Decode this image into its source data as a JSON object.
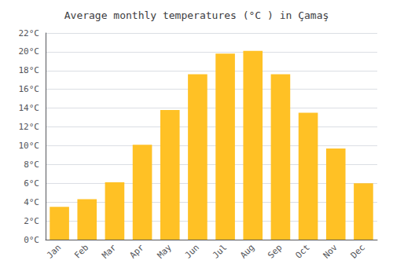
{
  "chart_data": {
    "type": "bar",
    "title": "Average monthly temperatures (°C ) in Çamaş",
    "categories": [
      "Jan",
      "Feb",
      "Mar",
      "Apr",
      "May",
      "Jun",
      "Jul",
      "Aug",
      "Sep",
      "Oct",
      "Nov",
      "Dec"
    ],
    "values": [
      3.5,
      4.3,
      6.1,
      10.1,
      13.8,
      17.6,
      19.8,
      20.1,
      17.6,
      13.5,
      9.7,
      6.0
    ],
    "color": "#FFC125",
    "ylim": [
      0,
      22
    ],
    "yticks": [
      {
        "value": 0,
        "label": "0°C"
      },
      {
        "value": 2,
        "label": "2°C"
      },
      {
        "value": 4,
        "label": "4°C"
      },
      {
        "value": 6,
        "label": "6°C"
      },
      {
        "value": 8,
        "label": "8°C"
      },
      {
        "value": 10,
        "label": "10°C"
      },
      {
        "value": 12,
        "label": "12°C"
      },
      {
        "value": 14,
        "label": "14°C"
      },
      {
        "value": 16,
        "label": "16°C"
      },
      {
        "value": 18,
        "label": "18°C"
      },
      {
        "value": 20,
        "label": "20°C"
      },
      {
        "value": 22,
        "label": "22°C"
      }
    ],
    "grid": true
  }
}
